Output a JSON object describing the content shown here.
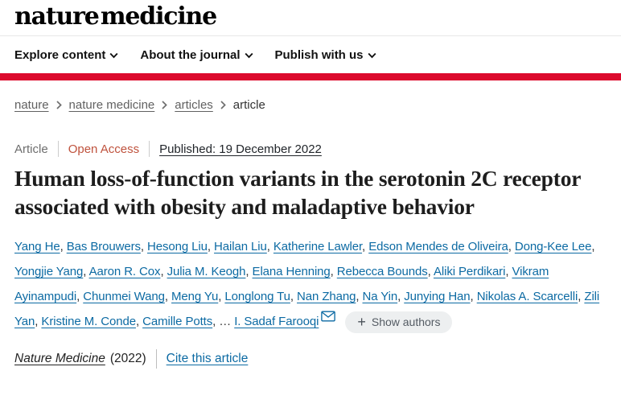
{
  "header": {
    "logo": "nature medicine",
    "nav": [
      {
        "label": "Explore content"
      },
      {
        "label": "About the journal"
      },
      {
        "label": "Publish with us"
      }
    ]
  },
  "breadcrumb": {
    "items": [
      {
        "label": "nature"
      },
      {
        "label": "nature medicine"
      },
      {
        "label": "articles"
      },
      {
        "label": "article"
      }
    ]
  },
  "article": {
    "type_label": "Article",
    "access_label": "Open Access",
    "published_label": "Published: 19 December 2022",
    "title": "Human loss-of-function variants in the serotonin 2C receptor associated with obesity and maladaptive behavior",
    "authors": [
      "Yang He",
      "Bas Brouwers",
      "Hesong Liu",
      "Hailan Liu",
      "Katherine Lawler",
      "Edson Mendes de Oliveira",
      "Dong-Kee Lee",
      "Yongjie Yang",
      "Aaron R. Cox",
      "Julia M. Keogh",
      "Elana Henning",
      "Rebecca Bounds",
      "Aliki Perdikari",
      "Vikram Ayinampudi",
      "Chunmei Wang",
      "Meng Yu",
      "Longlong Tu",
      "Nan Zhang",
      "Na Yin",
      "Junying Han",
      "Nikolas A. Scarcelli",
      "Zili Yan",
      "Kristine M. Conde",
      "Camille Potts"
    ],
    "authors_ellipsis": "…",
    "corresponding_author": "I. Sadaf Farooqi",
    "show_authors_plus": "+",
    "show_authors_label": "Show authors",
    "journal_name": "Nature Medicine",
    "journal_year": "(2022)",
    "cite_label": "Cite this article"
  },
  "colors": {
    "brand_red": "#dc0a2d",
    "link_blue": "#0c6aa3",
    "open_access_orange": "#bf523d"
  }
}
